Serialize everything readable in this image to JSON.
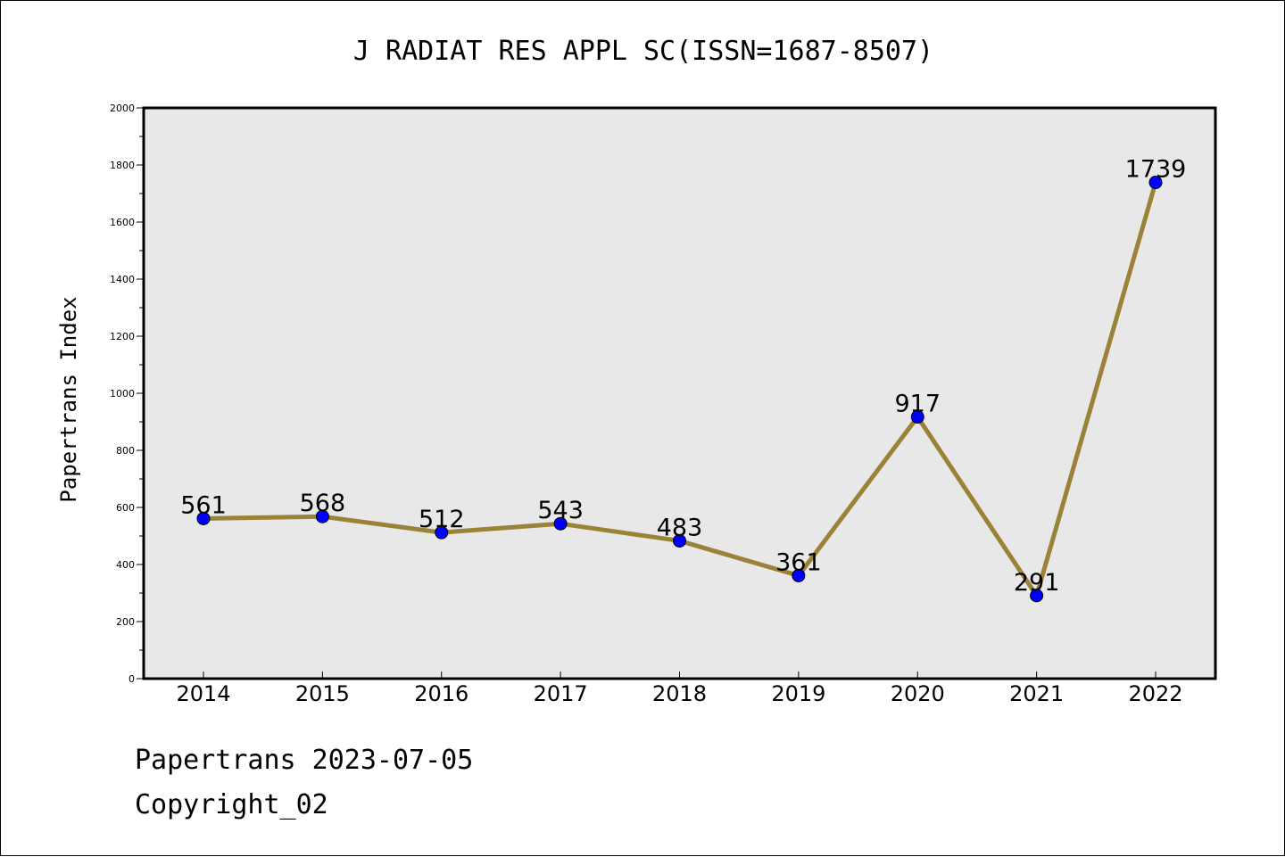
{
  "chart_data": {
    "type": "line",
    "title": "J RADIAT RES APPL SC(ISSN=1687-8507)",
    "ylabel": "Papertrans Index",
    "xlabel": "",
    "categories": [
      "2014",
      "2015",
      "2016",
      "2017",
      "2018",
      "2019",
      "2020",
      "2021",
      "2022"
    ],
    "series": [
      {
        "values": [
          561,
          568,
          512,
          543,
          483,
          361,
          917,
          291,
          1739
        ]
      }
    ],
    "data_labels": [
      "561",
      "568",
      "512",
      "543",
      "483",
      "361",
      "917",
      "291",
      "1739"
    ],
    "ylim": [
      0,
      2000
    ],
    "yticks": [
      "0",
      "200",
      "400",
      "600",
      "800",
      "1000",
      "1200",
      "1400",
      "1600",
      "1800",
      "2000"
    ],
    "grid": false,
    "colors": {
      "line": "#9a8338",
      "marker": "#0000ff",
      "plot_bg": "#e8e8e8"
    }
  },
  "footer": {
    "date_line": "Papertrans 2023-07-05",
    "copyright": "Copyright_02"
  }
}
